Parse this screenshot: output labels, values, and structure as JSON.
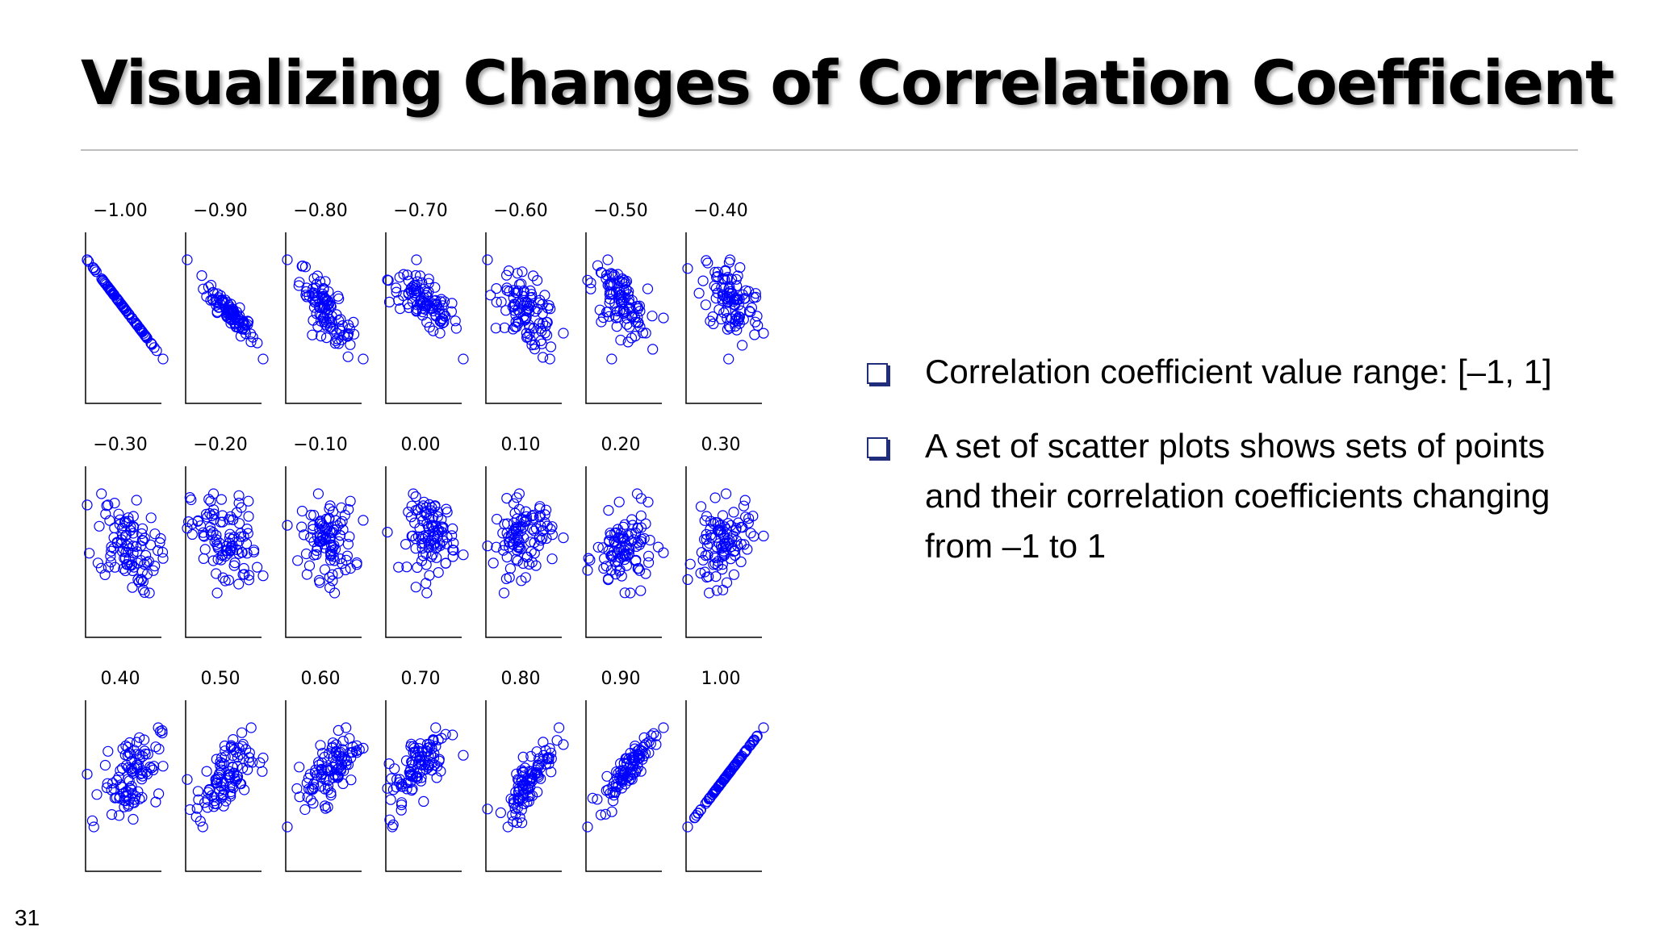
{
  "slide": {
    "title": "Visualizing Changes of Correlation Coefficient",
    "page_number": "31",
    "bullets": [
      "Correlation coefficient value range: [–1, 1]",
      "A set of scatter plots shows sets of points and their correlation coefficients changing from –1 to 1"
    ]
  },
  "chart_data": {
    "type": "scatter",
    "marker": "hollow-circle",
    "marker_color": "#0000ff",
    "grid": false,
    "layout": "3 rows x 7 columns small multiples",
    "panels": [
      {
        "title": "−1.00",
        "r": -1.0
      },
      {
        "title": "−0.90",
        "r": -0.9
      },
      {
        "title": "−0.80",
        "r": -0.8
      },
      {
        "title": "−0.70",
        "r": -0.7
      },
      {
        "title": "−0.60",
        "r": -0.6
      },
      {
        "title": "−0.50",
        "r": -0.5
      },
      {
        "title": "−0.40",
        "r": -0.4
      },
      {
        "title": "−0.30",
        "r": -0.3
      },
      {
        "title": "−0.20",
        "r": -0.2
      },
      {
        "title": "−0.10",
        "r": -0.1
      },
      {
        "title": "0.00",
        "r": 0.0
      },
      {
        "title": "0.10",
        "r": 0.1
      },
      {
        "title": "0.20",
        "r": 0.2
      },
      {
        "title": "0.30",
        "r": 0.3
      },
      {
        "title": "0.40",
        "r": 0.4
      },
      {
        "title": "0.50",
        "r": 0.5
      },
      {
        "title": "0.60",
        "r": 0.6
      },
      {
        "title": "0.70",
        "r": 0.7
      },
      {
        "title": "0.80",
        "r": 0.8
      },
      {
        "title": "0.90",
        "r": 0.9
      },
      {
        "title": "1.00",
        "r": 1.0
      }
    ]
  }
}
